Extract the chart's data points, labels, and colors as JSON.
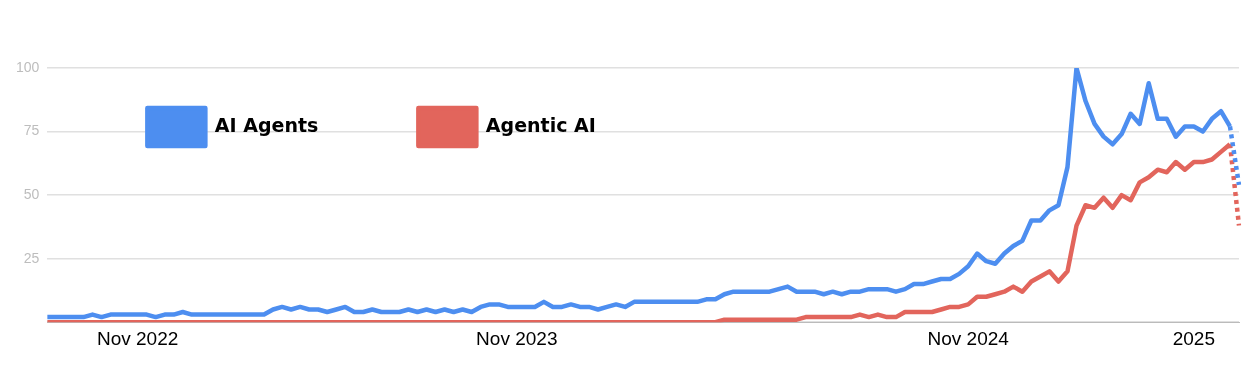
{
  "chart_data": {
    "type": "line",
    "categories": [
      null,
      null,
      null,
      null,
      null,
      null,
      null,
      null,
      null,
      null,
      "Nov 2022",
      null,
      null,
      null,
      null,
      null,
      null,
      null,
      null,
      null,
      null,
      null,
      null,
      null,
      null,
      null,
      null,
      null,
      null,
      null,
      null,
      null,
      null,
      null,
      null,
      null,
      null,
      null,
      null,
      null,
      null,
      null,
      null,
      null,
      null,
      null,
      null,
      null,
      null,
      null,
      null,
      null,
      "Nov 2023",
      null,
      null,
      null,
      null,
      null,
      null,
      null,
      null,
      null,
      null,
      null,
      null,
      null,
      null,
      null,
      null,
      null,
      null,
      null,
      null,
      null,
      null,
      null,
      null,
      null,
      null,
      null,
      null,
      null,
      null,
      null,
      null,
      null,
      null,
      null,
      null,
      null,
      null,
      null,
      null,
      null,
      null,
      null,
      null,
      null,
      null,
      null,
      null,
      null,
      "Nov 2024",
      null,
      null,
      null,
      null,
      null,
      null,
      null,
      null,
      null,
      null,
      null,
      null,
      null,
      null,
      null,
      null,
      null,
      null,
      null,
      null,
      null,
      null,
      null,
      null,
      "2025",
      null,
      null,
      null,
      null,
      null
    ],
    "series": [
      {
        "name": "AI Agents",
        "color": "#4d8ef0",
        "values": [
          2,
          2,
          2,
          2,
          2,
          3,
          2,
          3,
          3,
          3,
          3,
          3,
          2,
          3,
          3,
          4,
          3,
          3,
          3,
          3,
          3,
          3,
          3,
          3,
          3,
          5,
          6,
          5,
          6,
          5,
          5,
          4,
          5,
          6,
          4,
          4,
          5,
          4,
          4,
          4,
          5,
          4,
          5,
          4,
          5,
          4,
          5,
          4,
          6,
          7,
          7,
          6,
          6,
          6,
          6,
          8,
          6,
          6,
          7,
          6,
          6,
          5,
          6,
          7,
          6,
          8,
          8,
          8,
          8,
          8,
          8,
          8,
          8,
          9,
          9,
          11,
          12,
          12,
          12,
          12,
          12,
          13,
          14,
          12,
          12,
          12,
          11,
          12,
          11,
          12,
          12,
          13,
          13,
          13,
          12,
          13,
          15,
          15,
          16,
          17,
          17,
          19,
          22,
          27,
          24,
          23,
          27,
          30,
          32,
          40,
          40,
          44,
          46,
          61,
          100,
          87,
          78,
          73,
          70,
          74,
          82,
          78,
          94,
          80,
          80,
          73,
          77,
          77,
          75,
          80,
          83,
          77,
          null
        ]
      },
      {
        "name": "Agentic AI",
        "color": "#e2655c",
        "values": [
          0,
          0,
          0,
          0,
          0,
          0,
          0,
          0,
          0,
          0,
          0,
          0,
          0,
          0,
          0,
          0,
          0,
          0,
          0,
          0,
          0,
          0,
          0,
          0,
          0,
          0,
          0,
          0,
          0,
          0,
          0,
          0,
          0,
          0,
          0,
          0,
          0,
          0,
          0,
          0,
          0,
          0,
          0,
          0,
          0,
          0,
          0,
          0,
          0,
          0,
          0,
          0,
          0,
          0,
          0,
          0,
          0,
          0,
          0,
          0,
          0,
          0,
          0,
          0,
          0,
          0,
          0,
          0,
          0,
          0,
          0,
          0,
          0,
          0,
          0,
          1,
          1,
          1,
          1,
          1,
          1,
          1,
          1,
          1,
          2,
          2,
          2,
          2,
          2,
          2,
          3,
          2,
          3,
          2,
          2,
          4,
          4,
          4,
          4,
          5,
          6,
          6,
          7,
          10,
          10,
          11,
          12,
          14,
          12,
          16,
          18,
          20,
          16,
          20,
          38,
          46,
          45,
          49,
          45,
          50,
          48,
          55,
          57,
          60,
          59,
          63,
          60,
          63,
          63,
          64,
          67,
          70,
          null
        ]
      },
      {
        "color": "#4d8ef0",
        "line_style": "dotted",
        "values": [
          null,
          null,
          null,
          null,
          null,
          null,
          null,
          null,
          null,
          null,
          null,
          null,
          null,
          null,
          null,
          null,
          null,
          null,
          null,
          null,
          null,
          null,
          null,
          null,
          null,
          null,
          null,
          null,
          null,
          null,
          null,
          null,
          null,
          null,
          null,
          null,
          null,
          null,
          null,
          null,
          null,
          null,
          null,
          null,
          null,
          null,
          null,
          null,
          null,
          null,
          null,
          null,
          null,
          null,
          null,
          null,
          null,
          null,
          null,
          null,
          null,
          null,
          null,
          null,
          null,
          null,
          null,
          null,
          null,
          null,
          null,
          null,
          null,
          null,
          null,
          null,
          null,
          null,
          null,
          null,
          null,
          null,
          null,
          null,
          null,
          null,
          null,
          null,
          null,
          null,
          null,
          null,
          null,
          null,
          null,
          null,
          null,
          null,
          null,
          null,
          null,
          null,
          null,
          null,
          null,
          null,
          null,
          null,
          null,
          null,
          null,
          null,
          null,
          null,
          null,
          null,
          null,
          null,
          null,
          null,
          null,
          null,
          null,
          null,
          null,
          null,
          null,
          null,
          null,
          null,
          null,
          77,
          54
        ]
      },
      {
        "color": "#e2655c",
        "line_style": "dotted",
        "values": [
          null,
          null,
          null,
          null,
          null,
          null,
          null,
          null,
          null,
          null,
          null,
          null,
          null,
          null,
          null,
          null,
          null,
          null,
          null,
          null,
          null,
          null,
          null,
          null,
          null,
          null,
          null,
          null,
          null,
          null,
          null,
          null,
          null,
          null,
          null,
          null,
          null,
          null,
          null,
          null,
          null,
          null,
          null,
          null,
          null,
          null,
          null,
          null,
          null,
          null,
          null,
          null,
          null,
          null,
          null,
          null,
          null,
          null,
          null,
          null,
          null,
          null,
          null,
          null,
          null,
          null,
          null,
          null,
          null,
          null,
          null,
          null,
          null,
          null,
          null,
          null,
          null,
          null,
          null,
          null,
          null,
          null,
          null,
          null,
          null,
          null,
          null,
          null,
          null,
          null,
          null,
          null,
          null,
          null,
          null,
          null,
          null,
          null,
          null,
          null,
          null,
          null,
          null,
          null,
          null,
          null,
          null,
          null,
          null,
          null,
          null,
          null,
          null,
          null,
          null,
          null,
          null,
          null,
          null,
          null,
          null,
          null,
          null,
          null,
          null,
          null,
          null,
          null,
          null,
          null,
          null,
          70,
          38
        ]
      }
    ],
    "ylim": [
      0,
      100
    ],
    "yticks": [
      {
        "value": 0,
        "label": null
      },
      25,
      50,
      75,
      100
    ],
    "grid": "y",
    "legend": "top left",
    "marker": "none",
    "line_style": "solid"
  }
}
